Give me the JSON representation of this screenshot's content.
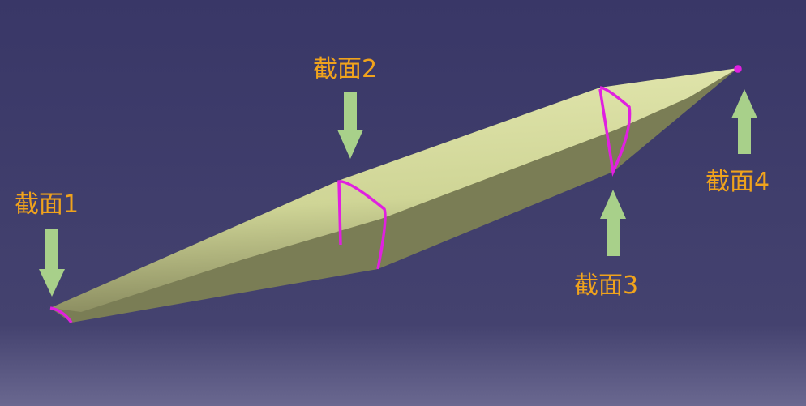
{
  "labels": [
    "截面1",
    "截面2",
    "截面3",
    "截面4"
  ]
}
